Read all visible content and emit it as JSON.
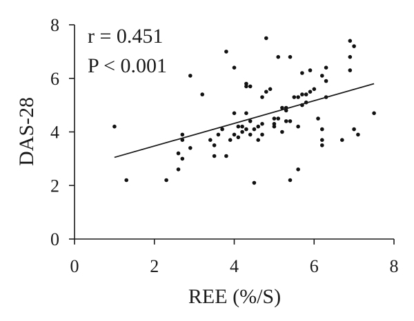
{
  "chart_data": {
    "type": "scatter",
    "title": "",
    "xlabel": "REE (%/S)",
    "ylabel": "DAS-28",
    "xlim": [
      0,
      8
    ],
    "ylim": [
      0,
      8
    ],
    "xticks": [
      "0",
      "2",
      "4",
      "6",
      "8"
    ],
    "yticks": [
      "0",
      "2",
      "4",
      "6",
      "8"
    ],
    "grid": false,
    "annotations": [
      "r = 0.451",
      "P < 0.001"
    ],
    "trendline": {
      "x": [
        1.0,
        7.5
      ],
      "y": [
        3.05,
        5.8
      ]
    },
    "points": [
      [
        1.0,
        4.2
      ],
      [
        1.3,
        2.2
      ],
      [
        2.3,
        2.2
      ],
      [
        2.6,
        3.2
      ],
      [
        2.6,
        2.6
      ],
      [
        2.7,
        3.9
      ],
      [
        2.7,
        3.7
      ],
      [
        2.7,
        3.0
      ],
      [
        2.9,
        3.4
      ],
      [
        2.9,
        6.1
      ],
      [
        3.2,
        5.4
      ],
      [
        3.4,
        3.7
      ],
      [
        3.5,
        3.5
      ],
      [
        3.5,
        3.1
      ],
      [
        3.6,
        3.9
      ],
      [
        3.7,
        4.1
      ],
      [
        3.8,
        3.1
      ],
      [
        3.8,
        7.0
      ],
      [
        3.9,
        3.7
      ],
      [
        4.0,
        3.9
      ],
      [
        4.0,
        4.7
      ],
      [
        4.0,
        6.4
      ],
      [
        4.1,
        3.8
      ],
      [
        4.1,
        4.2
      ],
      [
        4.2,
        4.0
      ],
      [
        4.2,
        4.2
      ],
      [
        4.3,
        4.1
      ],
      [
        4.3,
        4.7
      ],
      [
        4.3,
        5.8
      ],
      [
        4.3,
        5.7
      ],
      [
        4.4,
        5.7
      ],
      [
        4.4,
        3.9
      ],
      [
        4.4,
        4.4
      ],
      [
        4.5,
        4.1
      ],
      [
        4.5,
        2.1
      ],
      [
        4.6,
        4.2
      ],
      [
        4.6,
        3.7
      ],
      [
        4.7,
        3.9
      ],
      [
        4.7,
        5.3
      ],
      [
        4.7,
        4.3
      ],
      [
        4.8,
        5.5
      ],
      [
        4.8,
        7.5
      ],
      [
        4.9,
        5.6
      ],
      [
        5.0,
        4.2
      ],
      [
        5.0,
        4.5
      ],
      [
        5.0,
        4.3
      ],
      [
        5.1,
        4.5
      ],
      [
        5.1,
        6.8
      ],
      [
        5.2,
        4.0
      ],
      [
        5.2,
        4.9
      ],
      [
        5.3,
        4.8
      ],
      [
        5.3,
        4.9
      ],
      [
        5.3,
        4.4
      ],
      [
        5.4,
        2.2
      ],
      [
        5.4,
        4.4
      ],
      [
        5.4,
        6.8
      ],
      [
        5.5,
        5.3
      ],
      [
        5.6,
        5.3
      ],
      [
        5.6,
        4.2
      ],
      [
        5.6,
        2.6
      ],
      [
        5.7,
        5.4
      ],
      [
        5.7,
        5.0
      ],
      [
        5.7,
        6.2
      ],
      [
        5.8,
        5.4
      ],
      [
        5.8,
        5.1
      ],
      [
        5.9,
        5.5
      ],
      [
        5.9,
        6.3
      ],
      [
        6.0,
        5.6
      ],
      [
        6.1,
        4.5
      ],
      [
        6.2,
        6.1
      ],
      [
        6.2,
        4.1
      ],
      [
        6.2,
        3.7
      ],
      [
        6.2,
        3.5
      ],
      [
        6.3,
        5.3
      ],
      [
        6.3,
        6.4
      ],
      [
        6.3,
        5.9
      ],
      [
        6.7,
        3.7
      ],
      [
        6.9,
        6.3
      ],
      [
        6.9,
        6.8
      ],
      [
        6.9,
        7.4
      ],
      [
        7.0,
        4.1
      ],
      [
        7.0,
        7.2
      ],
      [
        7.1,
        3.9
      ],
      [
        7.5,
        4.7
      ]
    ]
  }
}
